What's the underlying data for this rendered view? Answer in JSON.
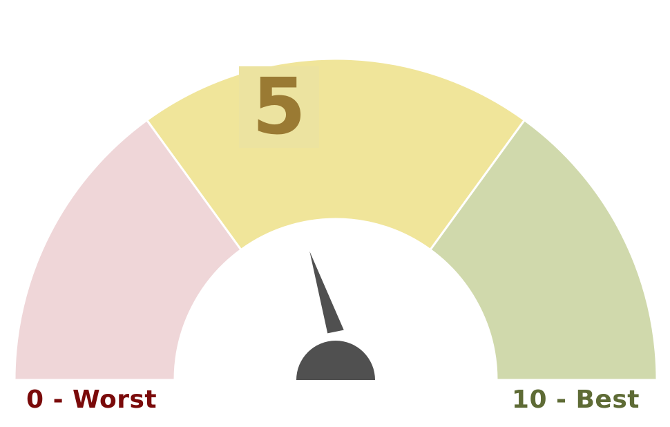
{
  "gauge": {
    "value": 5,
    "value_text": "5",
    "min": 0,
    "max": 10,
    "min_label": "0 - Worst",
    "max_label": "10 - Best",
    "bands": [
      {
        "from": 0,
        "to": 3,
        "color": "#efd6d8"
      },
      {
        "from": 3,
        "to": 7,
        "color": "#f0e59a"
      },
      {
        "from": 7,
        "to": 10,
        "color": "#d0d9ac"
      }
    ],
    "needle_color": "#505050",
    "value_color": "#9a7a33",
    "min_label_color": "#7a0a0a",
    "max_label_color": "#5e6b35"
  }
}
